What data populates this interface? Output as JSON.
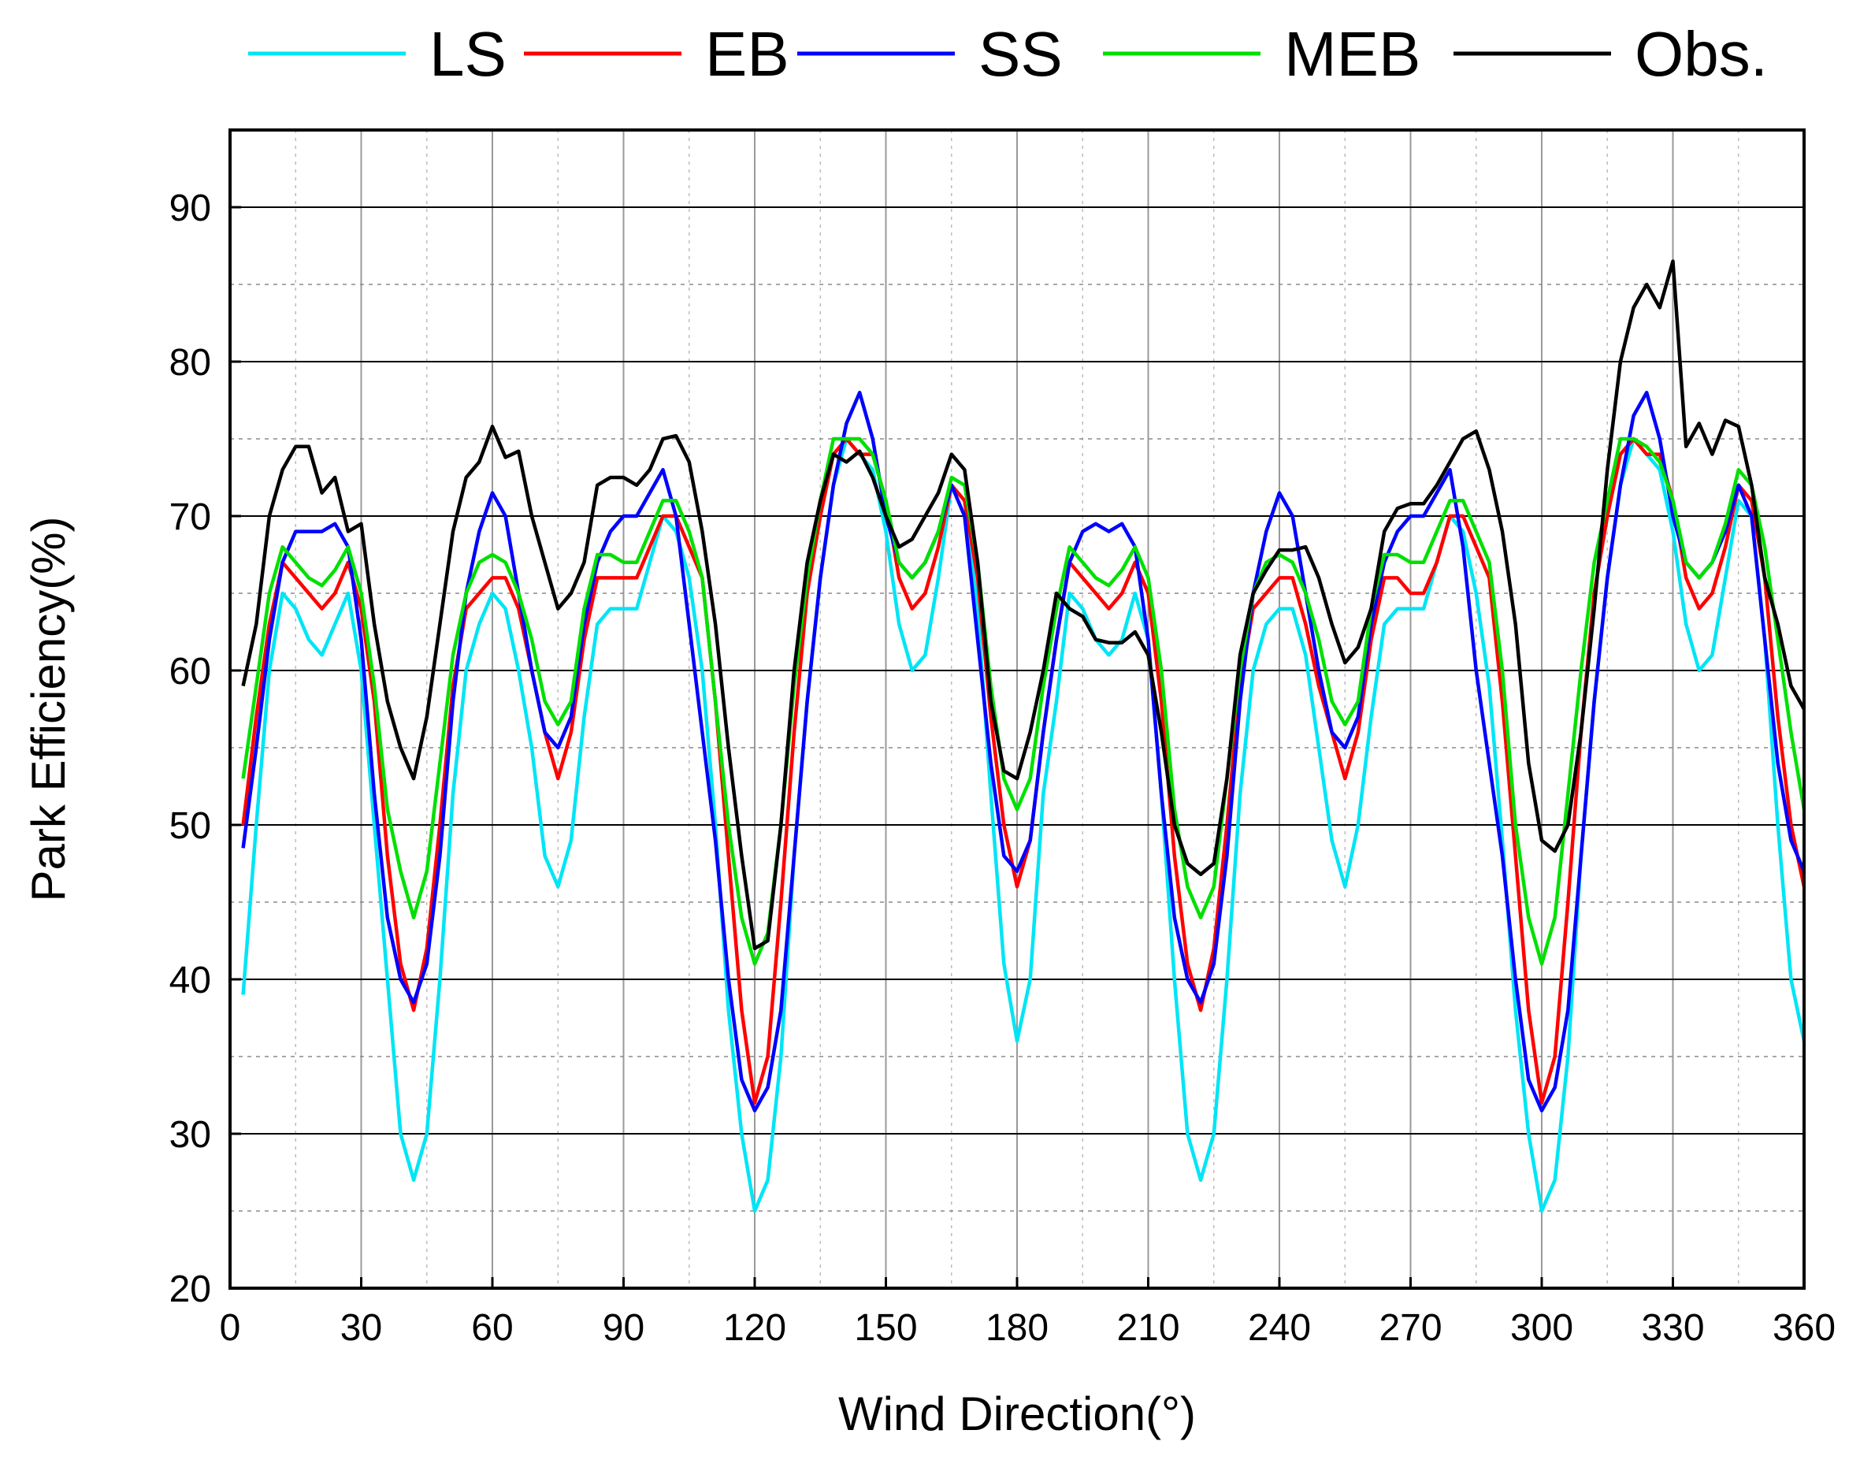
{
  "chart_data": {
    "type": "line",
    "title": "",
    "xlabel": "Wind Direction(°)",
    "ylabel": "Park Efficiency(%)",
    "xlim": [
      0,
      360
    ],
    "ylim": [
      20,
      95
    ],
    "xticks": [
      0,
      30,
      60,
      90,
      120,
      150,
      180,
      210,
      240,
      270,
      300,
      330,
      360
    ],
    "yticks": [
      20,
      30,
      40,
      50,
      60,
      70,
      80,
      90
    ],
    "grid": true,
    "legend_position": "top",
    "series": [
      {
        "name": "LS",
        "color": "#00e5f5",
        "x": [
          3,
          6,
          9,
          12,
          15,
          18,
          21,
          24,
          27,
          30,
          33,
          36,
          39,
          42,
          45,
          48,
          51,
          54,
          57,
          60,
          63,
          66,
          69,
          72,
          75,
          78,
          81,
          84,
          87,
          90,
          93,
          96,
          99,
          102,
          105,
          108,
          111,
          114,
          117,
          120,
          123,
          126,
          129,
          132,
          135,
          138,
          141,
          144,
          147,
          150,
          153,
          156,
          159,
          162,
          165,
          168,
          171,
          174,
          177,
          180,
          183,
          186,
          189,
          192,
          195,
          198,
          201,
          204,
          207,
          210,
          213,
          216,
          219,
          222,
          225,
          228,
          231,
          234,
          237,
          240,
          243,
          246,
          249,
          252,
          255,
          258,
          261,
          264,
          267,
          270,
          273,
          276,
          279,
          282,
          285,
          288,
          291,
          294,
          297,
          300,
          303,
          306,
          309,
          312,
          315,
          318,
          321,
          324,
          327,
          330,
          333,
          336,
          339,
          342,
          345,
          348,
          351,
          354,
          357,
          360
        ],
        "y": [
          39,
          50,
          60,
          65,
          64,
          62,
          61,
          63,
          65,
          60,
          50,
          40,
          30,
          27,
          30,
          40,
          52,
          60,
          63,
          65,
          64,
          60,
          55,
          48,
          46,
          49,
          57,
          63,
          64,
          64,
          64,
          67,
          70,
          69,
          66,
          60,
          50,
          38,
          30,
          25,
          27,
          35,
          48,
          58,
          66,
          72,
          75,
          74,
          73,
          69,
          63,
          60,
          61,
          66,
          72,
          71,
          64,
          52,
          41,
          36,
          40,
          52,
          58,
          65,
          64,
          62,
          61,
          62,
          65,
          62,
          52,
          40,
          30,
          27,
          30,
          40,
          52,
          60,
          63,
          64,
          64,
          61,
          55,
          49,
          46,
          50,
          57,
          63,
          64,
          64,
          64,
          67,
          70,
          69,
          65,
          59,
          49,
          38,
          30,
          25,
          27,
          35,
          48,
          58,
          66,
          72,
          75,
          74,
          73,
          69,
          63,
          60,
          61,
          66,
          71,
          70,
          62,
          50,
          40,
          36
        ]
      },
      {
        "name": "EB",
        "color": "#ff0000",
        "x": [
          3,
          6,
          9,
          12,
          15,
          18,
          21,
          24,
          27,
          30,
          33,
          36,
          39,
          42,
          45,
          48,
          51,
          54,
          57,
          60,
          63,
          66,
          69,
          72,
          75,
          78,
          81,
          84,
          87,
          90,
          93,
          96,
          99,
          102,
          105,
          108,
          111,
          114,
          117,
          120,
          123,
          126,
          129,
          132,
          135,
          138,
          141,
          144,
          147,
          150,
          153,
          156,
          159,
          162,
          165,
          168,
          171,
          174,
          177,
          180,
          183,
          186,
          189,
          192,
          195,
          198,
          201,
          204,
          207,
          210,
          213,
          216,
          219,
          222,
          225,
          228,
          231,
          234,
          237,
          240,
          243,
          246,
          249,
          252,
          255,
          258,
          261,
          264,
          267,
          270,
          273,
          276,
          279,
          282,
          285,
          288,
          291,
          294,
          297,
          300,
          303,
          306,
          309,
          312,
          315,
          318,
          321,
          324,
          327,
          330,
          333,
          336,
          339,
          342,
          345,
          348,
          351,
          354,
          357,
          360
        ],
        "y": [
          50,
          57,
          63,
          67,
          66,
          65,
          64,
          65,
          67,
          64,
          58,
          48,
          41,
          38,
          42,
          50,
          59,
          64,
          65,
          66,
          66,
          64,
          60,
          56,
          53,
          56,
          62,
          66,
          66,
          66,
          66,
          68,
          70,
          70,
          68,
          66,
          58,
          48,
          38,
          32,
          35,
          45,
          56,
          65,
          70,
          74,
          75,
          74,
          74,
          71,
          66,
          64,
          65,
          68,
          72,
          71,
          66,
          57,
          50,
          46,
          49,
          56,
          62,
          67,
          66,
          65,
          64,
          65,
          67,
          65,
          58,
          48,
          41,
          38,
          42,
          50,
          59,
          64,
          65,
          66,
          66,
          63,
          59,
          56,
          53,
          56,
          62,
          66,
          66,
          65,
          65,
          67,
          70,
          70,
          68,
          66,
          58,
          48,
          38,
          32,
          35,
          45,
          56,
          65,
          70,
          74,
          75,
          74,
          74,
          71,
          66,
          64,
          65,
          68,
          72,
          71,
          66,
          57,
          50,
          46
        ]
      },
      {
        "name": "SS",
        "color": "#0000ff",
        "x": [
          3,
          6,
          9,
          12,
          15,
          18,
          21,
          24,
          27,
          30,
          33,
          36,
          39,
          42,
          45,
          48,
          51,
          54,
          57,
          60,
          63,
          66,
          69,
          72,
          75,
          78,
          81,
          84,
          87,
          90,
          93,
          96,
          99,
          102,
          105,
          108,
          111,
          114,
          117,
          120,
          123,
          126,
          129,
          132,
          135,
          138,
          141,
          144,
          147,
          150,
          153,
          156,
          159,
          162,
          165,
          168,
          171,
          174,
          177,
          180,
          183,
          186,
          189,
          192,
          195,
          198,
          201,
          204,
          207,
          210,
          213,
          216,
          219,
          222,
          225,
          228,
          231,
          234,
          237,
          240,
          243,
          246,
          249,
          252,
          255,
          258,
          261,
          264,
          267,
          270,
          273,
          276,
          279,
          282,
          285,
          288,
          291,
          294,
          297,
          300,
          303,
          306,
          309,
          312,
          315,
          318,
          321,
          324,
          327,
          330,
          333,
          336,
          339,
          342,
          345,
          348,
          351,
          354,
          357,
          360
        ],
        "y": [
          48.5,
          55,
          62,
          67,
          69,
          69,
          69,
          69.5,
          68,
          62,
          52,
          44,
          40,
          38.5,
          41,
          48,
          58,
          65,
          69,
          71.5,
          70,
          65,
          60,
          56,
          55,
          57,
          63,
          67,
          69,
          70,
          70,
          71.5,
          73,
          70,
          63,
          56,
          49,
          40,
          33.5,
          31.5,
          33,
          38,
          48,
          58,
          66,
          72,
          76,
          78,
          75,
          70,
          67,
          66,
          67,
          69,
          72,
          70,
          62,
          54,
          48,
          47,
          49,
          56,
          62,
          67,
          69,
          69.5,
          69,
          69.5,
          68,
          62,
          52,
          44,
          40,
          38.5,
          41,
          48,
          58,
          65,
          69,
          71.5,
          70,
          65,
          60,
          56,
          55,
          57,
          63,
          67,
          69,
          70,
          70,
          71.5,
          73,
          68,
          60,
          54,
          48,
          40,
          33.5,
          31.5,
          33,
          38,
          48,
          58,
          66,
          72,
          76.5,
          78,
          75,
          70,
          67,
          66,
          67,
          69,
          72,
          70,
          62,
          54,
          49,
          47
        ]
      },
      {
        "name": "MEB",
        "color": "#00e000",
        "x": [
          3,
          6,
          9,
          12,
          15,
          18,
          21,
          24,
          27,
          30,
          33,
          36,
          39,
          42,
          45,
          48,
          51,
          54,
          57,
          60,
          63,
          66,
          69,
          72,
          75,
          78,
          81,
          84,
          87,
          90,
          93,
          96,
          99,
          102,
          105,
          108,
          111,
          114,
          117,
          120,
          123,
          126,
          129,
          132,
          135,
          138,
          141,
          144,
          147,
          150,
          153,
          156,
          159,
          162,
          165,
          168,
          171,
          174,
          177,
          180,
          183,
          186,
          189,
          192,
          195,
          198,
          201,
          204,
          207,
          210,
          213,
          216,
          219,
          222,
          225,
          228,
          231,
          234,
          237,
          240,
          243,
          246,
          249,
          252,
          255,
          258,
          261,
          264,
          267,
          270,
          273,
          276,
          279,
          282,
          285,
          288,
          291,
          294,
          297,
          300,
          303,
          306,
          309,
          312,
          315,
          318,
          321,
          324,
          327,
          330,
          333,
          336,
          339,
          342,
          345,
          348,
          351,
          354,
          357,
          360
        ],
        "y": [
          53,
          59,
          65,
          68,
          67,
          66,
          65.5,
          66.5,
          68,
          65,
          59,
          51,
          47,
          44,
          47,
          54,
          61,
          65,
          67,
          67.5,
          67,
          65,
          62,
          58,
          56.5,
          58,
          64,
          67.5,
          67.5,
          67,
          67,
          69,
          71,
          71,
          69,
          66,
          58,
          50,
          44,
          41,
          43,
          50,
          59,
          66,
          71,
          75,
          75,
          75,
          74,
          71,
          67,
          66,
          67,
          69,
          72.5,
          72,
          67,
          59,
          53,
          51,
          53,
          59,
          64,
          68,
          67,
          66,
          65.5,
          66.5,
          68,
          66,
          60,
          51,
          46,
          44,
          46,
          53,
          60,
          65,
          67,
          67.5,
          67,
          65,
          62,
          58,
          56.5,
          58,
          64,
          67.5,
          67.5,
          67,
          67,
          69,
          71,
          71,
          69,
          67,
          60,
          50,
          44,
          41,
          44,
          52,
          60,
          67,
          71,
          75,
          75,
          74.5,
          73.5,
          71,
          67,
          66,
          67,
          69.5,
          73,
          72,
          68,
          62,
          56,
          51
        ]
      },
      {
        "name": "Obs.",
        "color": "#000000",
        "x": [
          3,
          6,
          9,
          12,
          15,
          18,
          21,
          24,
          27,
          30,
          33,
          36,
          39,
          42,
          45,
          48,
          51,
          54,
          57,
          60,
          63,
          66,
          69,
          72,
          75,
          78,
          81,
          84,
          87,
          90,
          93,
          96,
          99,
          102,
          105,
          108,
          111,
          114,
          117,
          120,
          123,
          126,
          129,
          132,
          135,
          138,
          141,
          144,
          147,
          150,
          153,
          156,
          159,
          162,
          165,
          168,
          171,
          174,
          177,
          180,
          183,
          186,
          189,
          192,
          195,
          198,
          201,
          204,
          207,
          210,
          213,
          216,
          219,
          222,
          225,
          228,
          231,
          234,
          237,
          240,
          243,
          246,
          249,
          252,
          255,
          258,
          261,
          264,
          267,
          270,
          273,
          276,
          279,
          282,
          285,
          288,
          291,
          294,
          297,
          300,
          303,
          306,
          309,
          312,
          315,
          318,
          321,
          324,
          327,
          330,
          333,
          336,
          339,
          342,
          345,
          348,
          351,
          354,
          357,
          360
        ],
        "y": [
          59,
          63,
          70,
          73,
          74.5,
          74.5,
          71.5,
          72.5,
          69,
          69.5,
          63,
          58,
          55,
          53,
          57,
          63,
          69,
          72.5,
          73.5,
          75.8,
          73.8,
          74.2,
          70,
          67,
          64,
          65,
          67,
          72,
          72.5,
          72.5,
          72,
          73,
          75,
          75.2,
          73.5,
          69,
          63,
          55,
          48,
          42,
          42.5,
          50,
          60,
          67,
          71,
          74,
          73.5,
          74.2,
          72.5,
          70,
          68,
          68.5,
          70,
          71.5,
          74,
          73,
          67,
          58,
          53.5,
          53,
          56,
          60,
          65,
          64,
          63.5,
          62,
          61.8,
          61.8,
          62.5,
          61,
          56,
          50,
          47.5,
          46.8,
          47.5,
          53,
          61,
          65,
          66.5,
          67.8,
          67.8,
          68,
          66,
          63,
          60.5,
          61.5,
          64,
          69,
          70.5,
          70.8,
          70.8,
          72,
          73.5,
          75,
          75.5,
          73,
          69,
          63,
          54,
          49,
          48.3,
          50,
          56,
          64,
          73,
          80,
          83.5,
          85,
          83.5,
          86.5,
          74.5,
          76,
          74,
          76.2,
          75.8,
          72,
          66,
          63,
          59,
          57.5
        ]
      }
    ]
  }
}
